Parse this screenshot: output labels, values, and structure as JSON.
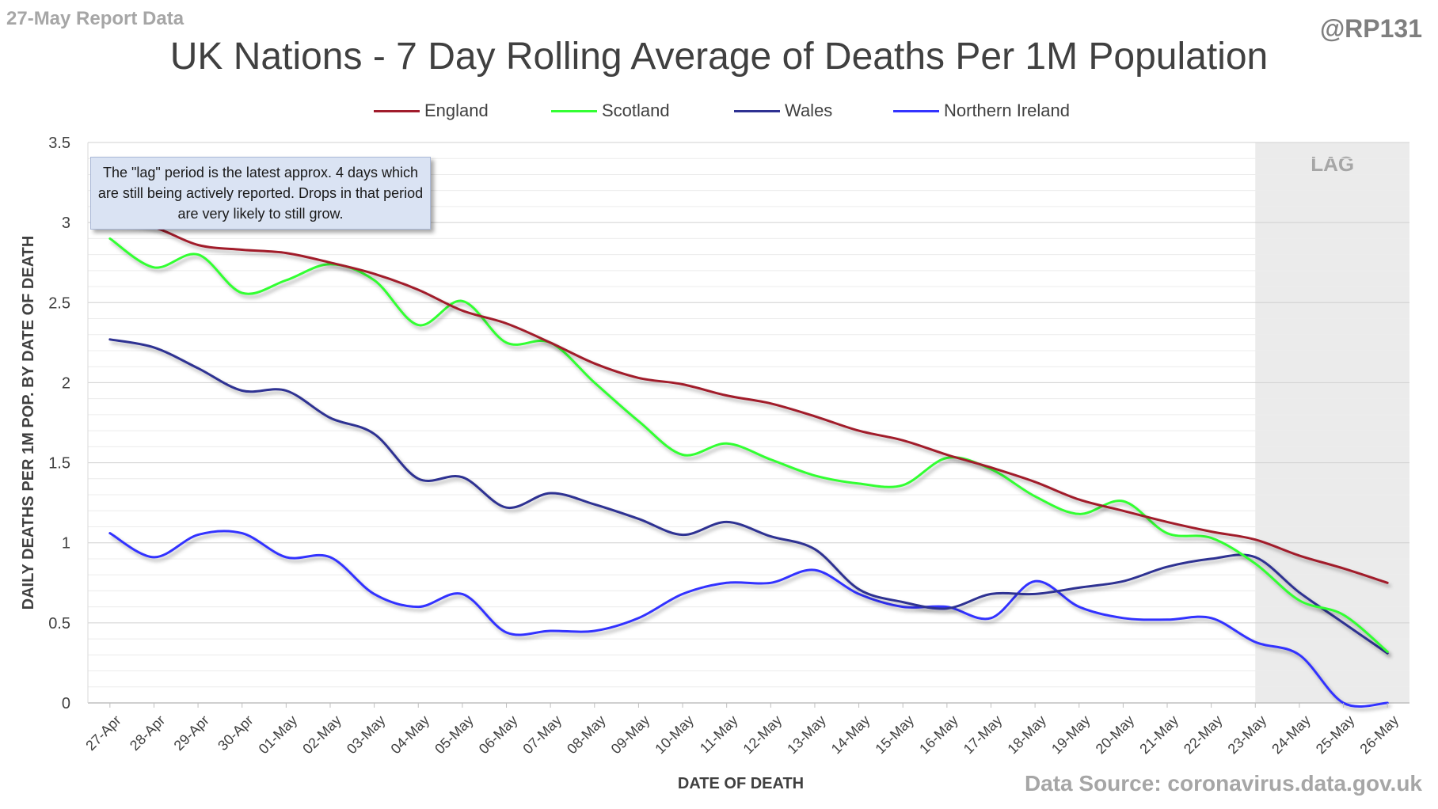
{
  "header": {
    "report_label": "27-May Report Data",
    "handle": "@RP131",
    "source": "Data Source: coronavirus.data.gov.uk"
  },
  "annotation": {
    "note": "The \"lag\" period is the latest approx. 4 days which are still being actively reported. Drops in that period are very likely to still grow.",
    "lag_label": "LAG",
    "lag_start": "23-May"
  },
  "colors": {
    "England": "#a11c2c",
    "Scotland": "#33ff33",
    "Wales": "#2e3192",
    "Northern Ireland": "#3333ff",
    "lag_fill": "#ebebeb",
    "grid": "#d9d9d9"
  },
  "chart_data": {
    "type": "line",
    "title": "UK Nations - 7 Day Rolling Average of Deaths Per 1M Population",
    "xlabel": "DATE OF DEATH",
    "ylabel": "DAILY DEATHS PER 1M POP. BY DATE OF DEATH",
    "ylim": [
      0,
      3.5
    ],
    "yticks": [
      0,
      0.5,
      1,
      1.5,
      2,
      2.5,
      3,
      3.5
    ],
    "ytick_labels": [
      "0",
      "0.5",
      "1",
      "1.5",
      "2",
      "2.5",
      "3",
      "3.5"
    ],
    "grid": true,
    "legend": "top",
    "categories": [
      "27-Apr",
      "28-Apr",
      "29-Apr",
      "30-Apr",
      "01-May",
      "02-May",
      "03-May",
      "04-May",
      "05-May",
      "06-May",
      "07-May",
      "08-May",
      "09-May",
      "10-May",
      "11-May",
      "12-May",
      "13-May",
      "14-May",
      "15-May",
      "16-May",
      "17-May",
      "18-May",
      "19-May",
      "20-May",
      "21-May",
      "22-May",
      "23-May",
      "24-May",
      "25-May",
      "26-May"
    ],
    "series": [
      {
        "name": "England",
        "values": [
          3.01,
          2.97,
          2.86,
          2.83,
          2.81,
          2.75,
          2.68,
          2.58,
          2.45,
          2.37,
          2.25,
          2.12,
          2.03,
          1.99,
          1.92,
          1.87,
          1.79,
          1.7,
          1.64,
          1.55,
          1.47,
          1.38,
          1.27,
          1.2,
          1.13,
          1.07,
          1.02,
          0.92,
          0.84,
          0.75
        ]
      },
      {
        "name": "Scotland",
        "values": [
          2.9,
          2.72,
          2.8,
          2.56,
          2.64,
          2.74,
          2.64,
          2.36,
          2.51,
          2.25,
          2.25,
          2.0,
          1.76,
          1.55,
          1.62,
          1.52,
          1.42,
          1.37,
          1.36,
          1.53,
          1.46,
          1.29,
          1.18,
          1.26,
          1.06,
          1.03,
          0.87,
          0.64,
          0.55,
          0.32
        ]
      },
      {
        "name": "Wales",
        "values": [
          2.27,
          2.22,
          2.09,
          1.95,
          1.95,
          1.78,
          1.68,
          1.4,
          1.41,
          1.22,
          1.31,
          1.24,
          1.15,
          1.05,
          1.13,
          1.04,
          0.96,
          0.71,
          0.63,
          0.59,
          0.68,
          0.68,
          0.72,
          0.76,
          0.85,
          0.9,
          0.91,
          0.69,
          0.5,
          0.31
        ]
      },
      {
        "name": "Northern Ireland",
        "values": [
          1.06,
          0.91,
          1.05,
          1.06,
          0.91,
          0.91,
          0.68,
          0.6,
          0.68,
          0.44,
          0.45,
          0.45,
          0.53,
          0.68,
          0.75,
          0.75,
          0.83,
          0.68,
          0.6,
          0.6,
          0.53,
          0.76,
          0.6,
          0.53,
          0.52,
          0.53,
          0.38,
          0.3,
          0.0,
          0.0
        ]
      }
    ]
  }
}
